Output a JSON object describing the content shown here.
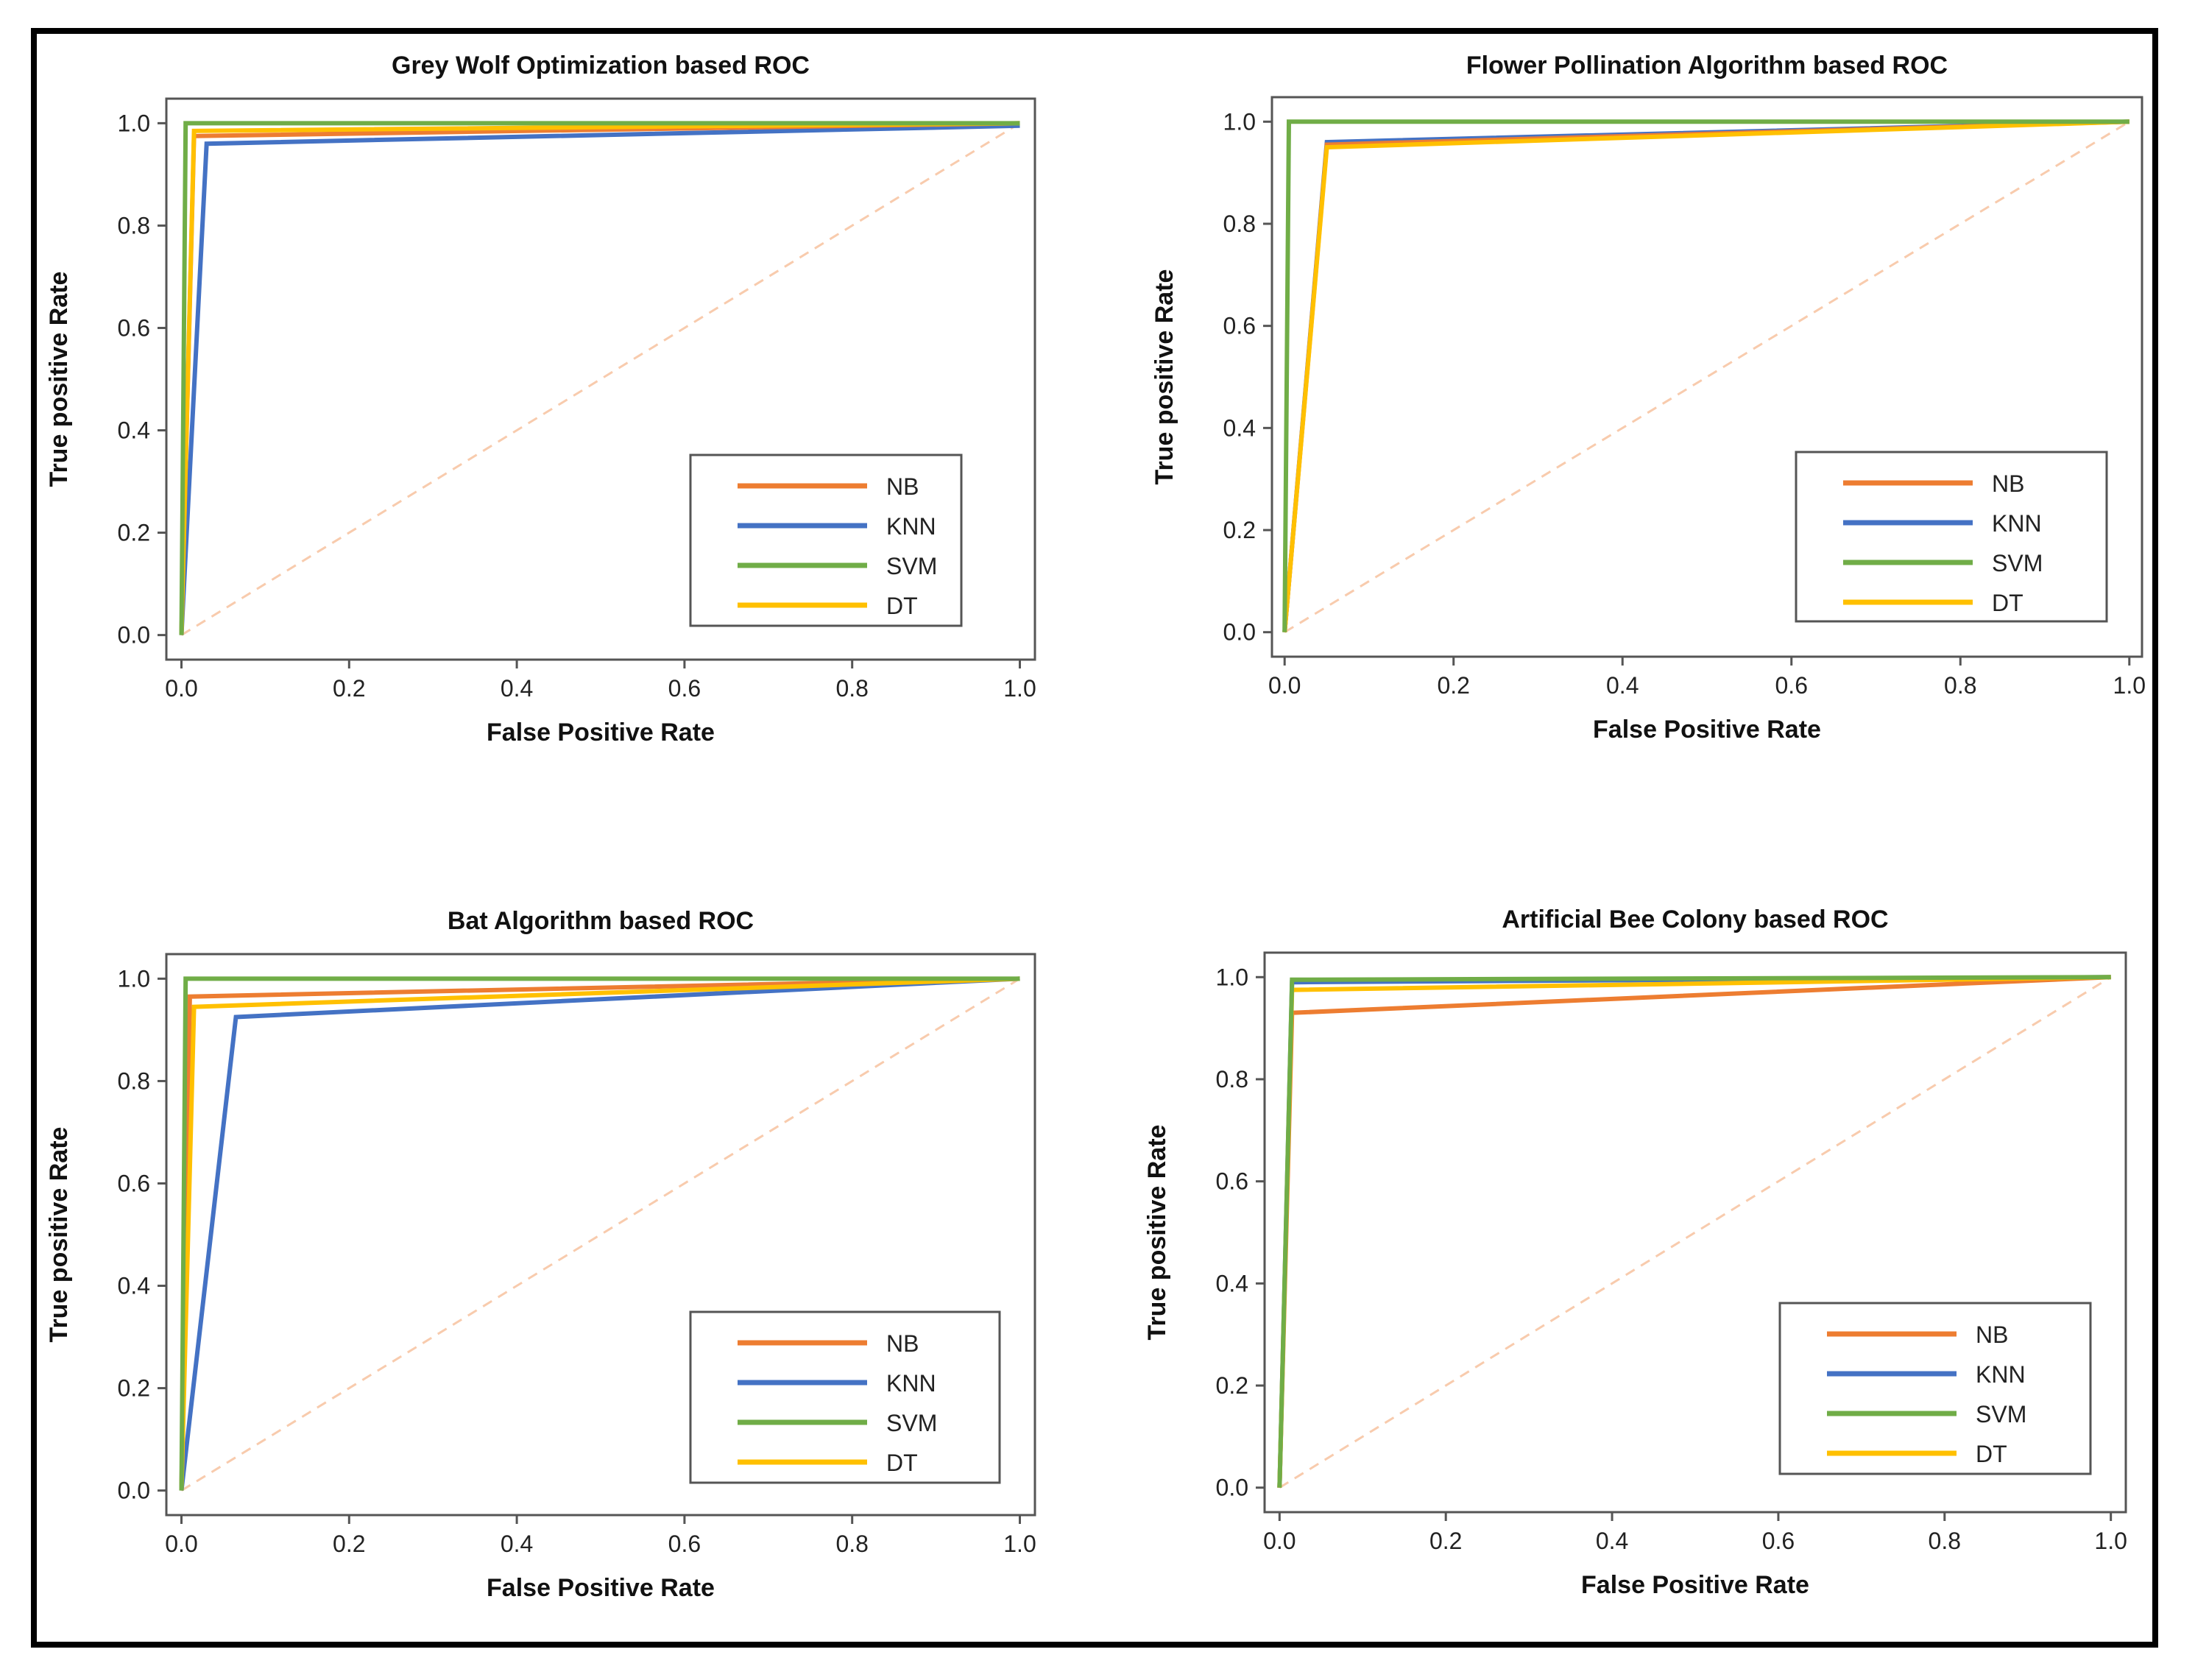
{
  "colors": {
    "NB": "#ed7d31",
    "KNN": "#4472c4",
    "SVM": "#70ad47",
    "DT": "#ffc000",
    "diagonal": "#f8cbad"
  },
  "chart_data": [
    {
      "type": "line",
      "title": "Grey Wolf Optimization based ROC",
      "xlabel": "False Positive Rate",
      "ylabel": "True positive Rate",
      "xlim": [
        0,
        1.0
      ],
      "ylim": [
        0,
        1.0
      ],
      "xticks": [
        "0.0",
        "0.2",
        "0.4",
        "0.6",
        "0.8",
        "1.0"
      ],
      "yticks": [
        "0.0",
        "0.2",
        "0.4",
        "0.6",
        "0.8",
        "1.0"
      ],
      "legend": "lower-right",
      "series": [
        {
          "name": "NB",
          "x": [
            0,
            0.015,
            1
          ],
          "y": [
            0,
            0.975,
            1
          ]
        },
        {
          "name": "KNN",
          "x": [
            0,
            0.03,
            1
          ],
          "y": [
            0,
            0.96,
            0.995
          ]
        },
        {
          "name": "SVM",
          "x": [
            0,
            0.005,
            1
          ],
          "y": [
            0,
            1.0,
            1
          ]
        },
        {
          "name": "DT",
          "x": [
            0,
            0.015,
            1
          ],
          "y": [
            0,
            0.985,
            1
          ]
        }
      ],
      "diagonal": {
        "x": [
          0,
          1
        ],
        "y": [
          0,
          1
        ]
      }
    },
    {
      "type": "line",
      "title": "Flower Pollination Algorithm based ROC",
      "xlabel": "False Positive Rate",
      "ylabel": "True positive Rate",
      "xlim": [
        0,
        1.0
      ],
      "ylim": [
        0,
        1.0
      ],
      "xticks": [
        "0.0",
        "0.2",
        "0.4",
        "0.6",
        "0.8",
        "1.0"
      ],
      "yticks": [
        "0.0",
        "0.2",
        "0.4",
        "0.6",
        "0.8",
        "1.0"
      ],
      "legend": "lower-right",
      "series": [
        {
          "name": "NB",
          "x": [
            0,
            0.05,
            1
          ],
          "y": [
            0,
            0.955,
            1
          ]
        },
        {
          "name": "KNN",
          "x": [
            0,
            0.05,
            1
          ],
          "y": [
            0,
            0.96,
            1
          ]
        },
        {
          "name": "SVM",
          "x": [
            0,
            0.005,
            1
          ],
          "y": [
            0,
            1.0,
            1
          ]
        },
        {
          "name": "DT",
          "x": [
            0,
            0.05,
            1
          ],
          "y": [
            0,
            0.95,
            1
          ]
        }
      ],
      "diagonal": {
        "x": [
          0,
          1
        ],
        "y": [
          0,
          1
        ]
      }
    },
    {
      "type": "line",
      "title": "Bat Algorithm based ROC",
      "xlabel": "False Positive Rate",
      "ylabel": "True positive Rate",
      "xlim": [
        0,
        1.0
      ],
      "ylim": [
        0,
        1.0
      ],
      "xticks": [
        "0.0",
        "0.2",
        "0.4",
        "0.6",
        "0.8",
        "1.0"
      ],
      "yticks": [
        "0.0",
        "0.2",
        "0.4",
        "0.6",
        "0.8",
        "1.0"
      ],
      "legend": "lower-right",
      "series": [
        {
          "name": "NB",
          "x": [
            0,
            0.01,
            1
          ],
          "y": [
            0,
            0.965,
            1
          ]
        },
        {
          "name": "KNN",
          "x": [
            0,
            0.065,
            1
          ],
          "y": [
            0,
            0.925,
            1
          ]
        },
        {
          "name": "SVM",
          "x": [
            0,
            0.005,
            1
          ],
          "y": [
            0,
            1.0,
            1
          ]
        },
        {
          "name": "DT",
          "x": [
            0,
            0.015,
            1
          ],
          "y": [
            0,
            0.945,
            1
          ]
        }
      ],
      "diagonal": {
        "x": [
          0,
          1
        ],
        "y": [
          0,
          1
        ]
      }
    },
    {
      "type": "line",
      "title": "Artificial Bee Colony based ROC",
      "xlabel": "False Positive Rate",
      "ylabel": "True positive Rate",
      "xlim": [
        0,
        1.0
      ],
      "ylim": [
        0,
        1.0
      ],
      "xticks": [
        "0.0",
        "0.2",
        "0.4",
        "0.6",
        "0.8",
        "1.0"
      ],
      "yticks": [
        "0.0",
        "0.2",
        "0.4",
        "0.6",
        "0.8",
        "1.0"
      ],
      "legend": "lower-right",
      "series": [
        {
          "name": "NB",
          "x": [
            0,
            0.015,
            1
          ],
          "y": [
            0,
            0.93,
            1
          ]
        },
        {
          "name": "KNN",
          "x": [
            0,
            0.015,
            1
          ],
          "y": [
            0,
            0.99,
            1
          ]
        },
        {
          "name": "SVM",
          "x": [
            0,
            0.015,
            1
          ],
          "y": [
            0,
            0.995,
            1
          ]
        },
        {
          "name": "DT",
          "x": [
            0,
            0.015,
            1
          ],
          "y": [
            0,
            0.975,
            1
          ]
        }
      ],
      "diagonal": {
        "x": [
          0,
          1
        ],
        "y": [
          0,
          1
        ]
      }
    }
  ]
}
